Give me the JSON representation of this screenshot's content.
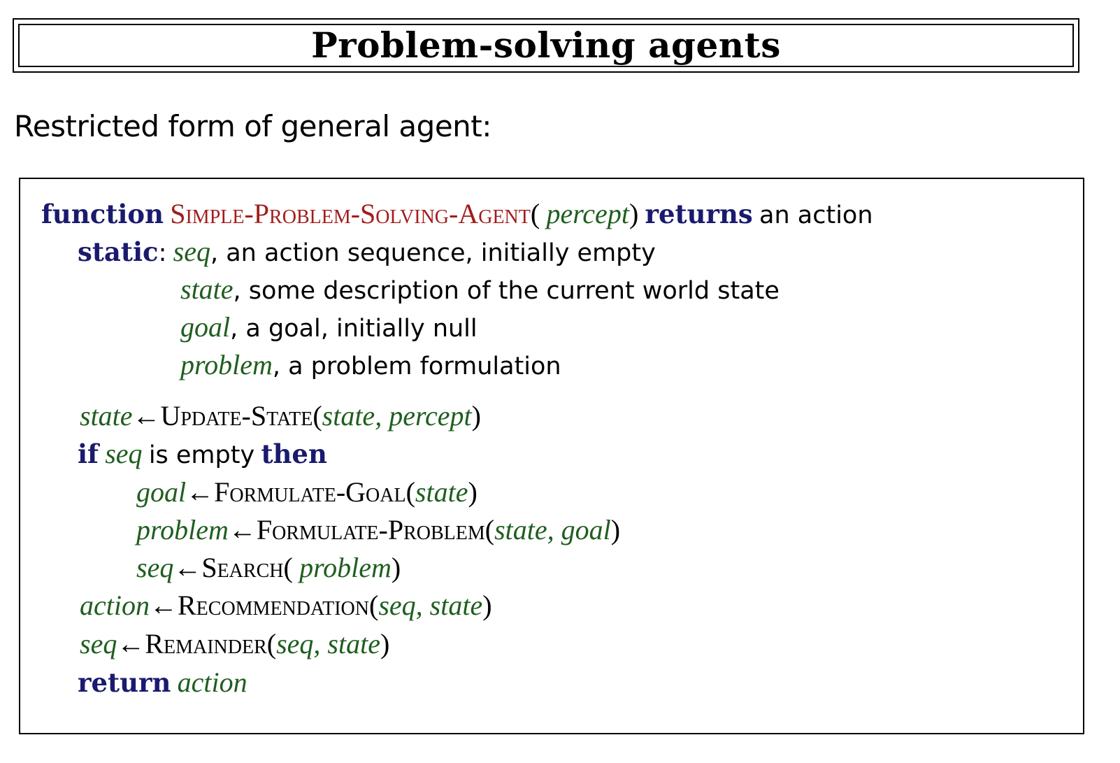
{
  "title": "Problem-solving agents",
  "subtitle": "Restricted form of general agent:",
  "algorithm": {
    "l1": {
      "kw_function": "function",
      "name": "Simple-Problem-Solving-Agent",
      "open": "(",
      "param": "percept",
      "close": ")",
      "kw_returns": "returns",
      "ret": "an action"
    },
    "l2": {
      "kw": "static",
      "colon": ":",
      "var": "seq",
      "desc": ", an action sequence, initially empty"
    },
    "l3": {
      "var": "state",
      "desc": ", some description of the current world state"
    },
    "l4": {
      "var": "goal",
      "desc": ", a goal, initially null"
    },
    "l5": {
      "var": "problem",
      "desc": ", a problem formulation"
    },
    "l6": {
      "lhs": "state",
      "arrow": "←",
      "fn": "Update-State",
      "open": "(",
      "args": "state, percept",
      "close": ")"
    },
    "l7": {
      "kw_if": "if",
      "var": "seq",
      "mid": "is empty",
      "kw_then": "then"
    },
    "l8": {
      "lhs": "goal",
      "arrow": "←",
      "fn": "Formulate-Goal",
      "open": "(",
      "args": "state",
      "close": ")"
    },
    "l9": {
      "lhs": "problem",
      "arrow": "←",
      "fn": "Formulate-Problem",
      "open": "(",
      "args": "state, goal",
      "close": ")"
    },
    "l10": {
      "lhs": "seq",
      "arrow": "←",
      "fn": "Search",
      "open": "(",
      "args": "problem",
      "close": ")"
    },
    "l11": {
      "lhs": "action",
      "arrow": "←",
      "fn": "Recommendation",
      "open": "(",
      "args": "seq, state",
      "close": ")"
    },
    "l12": {
      "lhs": "seq",
      "arrow": "←",
      "fn": "Remainder",
      "open": "(",
      "args": "seq, state",
      "close": ")"
    },
    "l13": {
      "kw": "return",
      "var": "action"
    }
  },
  "colors": {
    "keyword": "#1a1a6e",
    "function_name": "#a11d1d",
    "variable": "#1f5e1f",
    "text": "#000000"
  }
}
